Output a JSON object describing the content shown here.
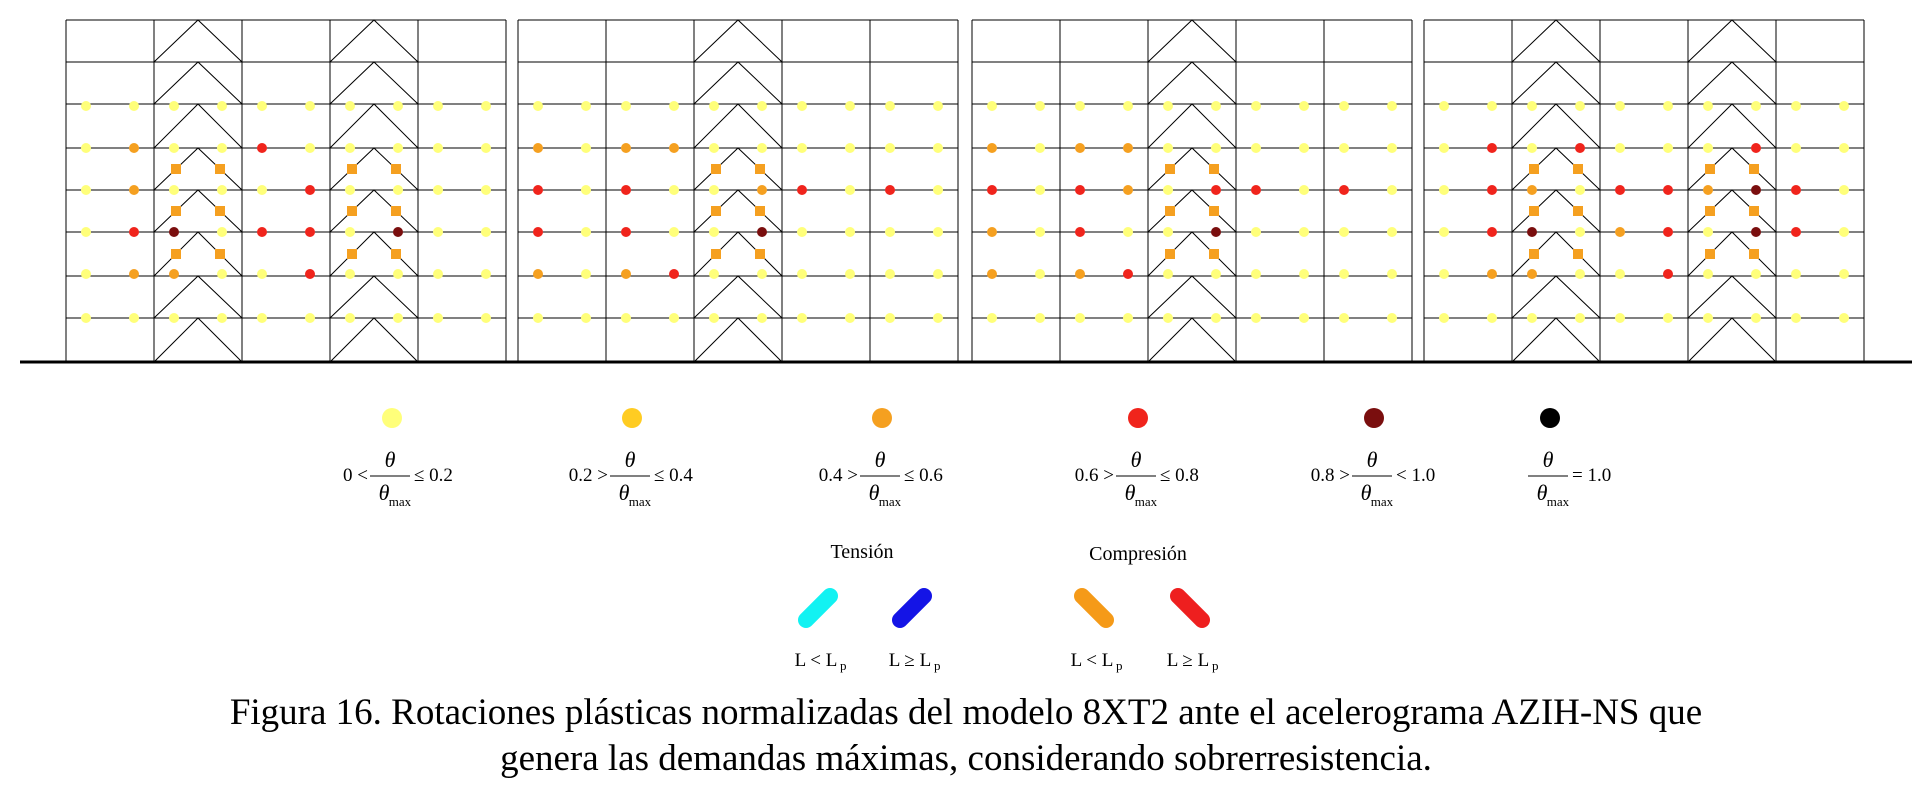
{
  "colors": {
    "c1": "#FFFF7A",
    "c2": "#FFCC22",
    "c3": "#F5A020",
    "c4": "#F0241C",
    "c5": "#7A0E0E",
    "c6": "#000000",
    "tension_short": "#12F2F2",
    "tension_long": "#1414E6",
    "compression_short": "#F59A18",
    "compression_long": "#EE1F1F"
  },
  "legend": {
    "hinges": [
      {
        "key": "c1",
        "prefix": "0 <",
        "num": "θ",
        "den": "θ",
        "den_sub": "max",
        "suffix": "≤ 0.2"
      },
      {
        "key": "c2",
        "prefix": "0.2 >",
        "num": "θ",
        "den": "θ",
        "den_sub": "max",
        "suffix": "≤ 0.4"
      },
      {
        "key": "c3",
        "prefix": "0.4 >",
        "num": "θ",
        "den": "θ",
        "den_sub": "max",
        "suffix": "≤ 0.6"
      },
      {
        "key": "c4",
        "prefix": "0.6 >",
        "num": "θ",
        "den": "θ",
        "den_sub": "max",
        "suffix": "≤ 0.8"
      },
      {
        "key": "c5",
        "prefix": "0.8 >",
        "num": "θ",
        "den": "θ",
        "den_sub": "max",
        "suffix": "< 1.0"
      },
      {
        "key": "c6",
        "prefix": "",
        "num": "θ",
        "den": "θ",
        "den_sub": "max",
        "suffix": "= 1.0"
      }
    ],
    "braces": {
      "tension_title": "Tensión",
      "compression_title": "Compresión",
      "items": [
        {
          "key": "tension_short",
          "label": "L < L",
          "sub": "p"
        },
        {
          "key": "tension_long",
          "label": "L ≥ L",
          "sub": "p"
        },
        {
          "key": "compression_short",
          "label": "L < L",
          "sub": "p"
        },
        {
          "key": "compression_long",
          "label": "L ≥ L",
          "sub": "p"
        }
      ]
    }
  },
  "caption": {
    "line1": "Figura 16. Rotaciones plásticas normalizadas del modelo 8XT2 ante el acelerograma AZIH-NS que",
    "line2": "genera las demandas máximas, considerando sobrerresistencia."
  },
  "frames": [
    {
      "name": "frame-1",
      "braced_bays": [
        1,
        3
      ],
      "beam_hinges": [
        [
          "c1",
          "c1",
          "c1",
          "c1",
          "c1",
          "c1",
          "c1",
          "c1",
          "c1",
          "c1"
        ],
        [
          "c1",
          "c3",
          "c1",
          "c1",
          "c4",
          "c1",
          "c1",
          "c1",
          "c1",
          "c1"
        ],
        [
          "c1",
          "c3",
          "c1",
          "c1",
          "c1",
          "c4",
          "c1",
          "c1",
          "c1",
          "c1"
        ],
        [
          "c1",
          "c4",
          "c5",
          "c1",
          "c4",
          "c4",
          "c1",
          "c5",
          "c1",
          "c1"
        ],
        [
          "c1",
          "c3",
          "c3",
          "c1",
          "c1",
          "c4",
          "c1",
          "c1",
          "c1",
          "c1"
        ],
        [
          "c1",
          "c1",
          "c1",
          "c1",
          "c1",
          "c1",
          "c1",
          "c1",
          "c1",
          "c1"
        ]
      ],
      "brace_hinges": [
        [
          "c3",
          "c3"
        ],
        [
          "c3",
          "c3"
        ],
        [
          "c3",
          "c3"
        ],
        [
          "c3",
          "c3"
        ],
        [
          "c3",
          "c3"
        ],
        [
          "c3",
          "c3"
        ]
      ]
    },
    {
      "name": "frame-2",
      "braced_bays": [
        2
      ],
      "beam_hinges": [
        [
          "c1",
          "c1",
          "c1",
          "c1",
          "c1",
          "c1",
          "c1",
          "c1",
          "c1",
          "c1"
        ],
        [
          "c3",
          "c1",
          "c3",
          "c3",
          "c1",
          "c1",
          "c1",
          "c1",
          "c1",
          "c1"
        ],
        [
          "c4",
          "c1",
          "c4",
          "c1",
          "c1",
          "c3",
          "c4",
          "c1",
          "c4",
          "c1"
        ],
        [
          "c4",
          "c1",
          "c4",
          "c1",
          "c1",
          "c5",
          "c1",
          "c1",
          "c1",
          "c1"
        ],
        [
          "c3",
          "c1",
          "c3",
          "c4",
          "c1",
          "c1",
          "c1",
          "c1",
          "c1",
          "c1"
        ],
        [
          "c1",
          "c1",
          "c1",
          "c1",
          "c1",
          "c1",
          "c1",
          "c1",
          "c1",
          "c1"
        ]
      ],
      "brace_hinges": [
        [
          "c3",
          "c3"
        ],
        [
          "c3",
          "c3"
        ],
        [
          "c3",
          "c3"
        ]
      ]
    },
    {
      "name": "frame-3",
      "braced_bays": [
        2
      ],
      "beam_hinges": [
        [
          "c1",
          "c1",
          "c1",
          "c1",
          "c1",
          "c1",
          "c1",
          "c1",
          "c1",
          "c1"
        ],
        [
          "c3",
          "c1",
          "c3",
          "c3",
          "c1",
          "c1",
          "c1",
          "c1",
          "c1",
          "c1"
        ],
        [
          "c4",
          "c1",
          "c4",
          "c3",
          "c1",
          "c4",
          "c4",
          "c1",
          "c4",
          "c1"
        ],
        [
          "c3",
          "c1",
          "c4",
          "c1",
          "c1",
          "c5",
          "c1",
          "c1",
          "c1",
          "c1"
        ],
        [
          "c3",
          "c1",
          "c3",
          "c4",
          "c1",
          "c1",
          "c1",
          "c1",
          "c1",
          "c1"
        ],
        [
          "c1",
          "c1",
          "c1",
          "c1",
          "c1",
          "c1",
          "c1",
          "c1",
          "c1",
          "c1"
        ]
      ],
      "brace_hinges": [
        [
          "c3",
          "c3"
        ],
        [
          "c3",
          "c3"
        ],
        [
          "c3",
          "c3"
        ]
      ]
    },
    {
      "name": "frame-4",
      "braced_bays": [
        1,
        3
      ],
      "beam_hinges": [
        [
          "c1",
          "c1",
          "c1",
          "c1",
          "c1",
          "c1",
          "c1",
          "c1",
          "c1",
          "c1"
        ],
        [
          "c1",
          "c4",
          "c1",
          "c4",
          "c1",
          "c1",
          "c1",
          "c4",
          "c1",
          "c1"
        ],
        [
          "c1",
          "c4",
          "c3",
          "c1",
          "c4",
          "c4",
          "c3",
          "c5",
          "c4",
          "c1"
        ],
        [
          "c1",
          "c4",
          "c5",
          "c1",
          "c3",
          "c4",
          "c1",
          "c5",
          "c4",
          "c1"
        ],
        [
          "c1",
          "c3",
          "c3",
          "c1",
          "c1",
          "c4",
          "c1",
          "c1",
          "c1",
          "c1"
        ],
        [
          "c1",
          "c1",
          "c1",
          "c1",
          "c1",
          "c1",
          "c1",
          "c1",
          "c1",
          "c1"
        ]
      ],
      "brace_hinges": [
        [
          "c3",
          "c3"
        ],
        [
          "c3",
          "c3"
        ],
        [
          "c3",
          "c3"
        ],
        [
          "c3",
          "c3"
        ],
        [
          "c3",
          "c3"
        ],
        [
          "c3",
          "c3"
        ]
      ]
    }
  ]
}
